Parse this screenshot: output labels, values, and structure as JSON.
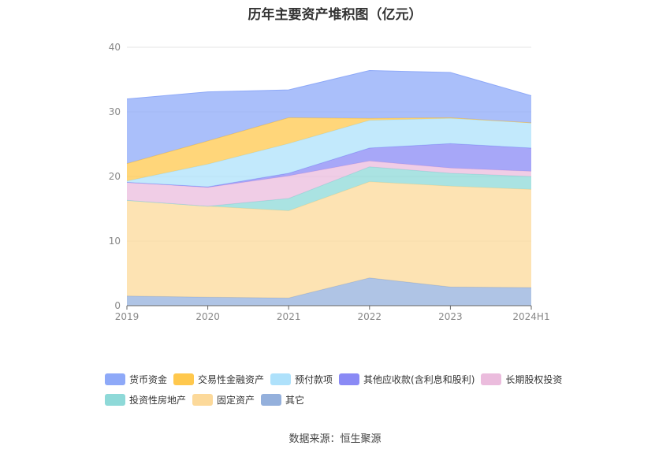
{
  "title": "历年主要资产堆积图（亿元）",
  "source": "数据来源：恒生聚源",
  "chart_data": {
    "type": "area",
    "stacked": true,
    "x": [
      "2019",
      "2020",
      "2021",
      "2022",
      "2023",
      "2024H1"
    ],
    "ylim": [
      0,
      40
    ],
    "yticks": [
      "0",
      "10",
      "20",
      "30",
      "40"
    ],
    "grid": true,
    "legend_position": "bottom",
    "series": [
      {
        "name": "其它",
        "color": "#94b0dc",
        "values": [
          1.5,
          1.3,
          1.2,
          4.3,
          2.9,
          2.8
        ]
      },
      {
        "name": "固定资产",
        "color": "#fcd99a",
        "values": [
          14.8,
          14.1,
          13.5,
          14.9,
          15.6,
          15.2
        ]
      },
      {
        "name": "投资性房地产",
        "color": "#8ed9d8",
        "values": [
          0.0,
          0.0,
          1.9,
          2.3,
          2.0,
          2.0
        ]
      },
      {
        "name": "长期股权投资",
        "color": "#ebbcdd",
        "values": [
          2.8,
          2.9,
          3.5,
          0.9,
          0.8,
          0.8
        ]
      },
      {
        "name": "其他应收款(含利息和股利)",
        "color": "#8a8af5",
        "values": [
          0.0,
          0.1,
          0.4,
          2.0,
          3.8,
          3.6
        ]
      },
      {
        "name": "预付款项",
        "color": "#aee1fb",
        "values": [
          0.2,
          3.5,
          4.6,
          4.3,
          3.9,
          3.9
        ]
      },
      {
        "name": "交易性金融资产",
        "color": "#ffc84d",
        "values": [
          2.7,
          3.6,
          4.0,
          0.3,
          0.1,
          0.0
        ]
      },
      {
        "name": "货币资金",
        "color": "#8ea9f8",
        "values": [
          10.0,
          7.6,
          4.3,
          7.4,
          7.0,
          4.2
        ]
      }
    ]
  }
}
